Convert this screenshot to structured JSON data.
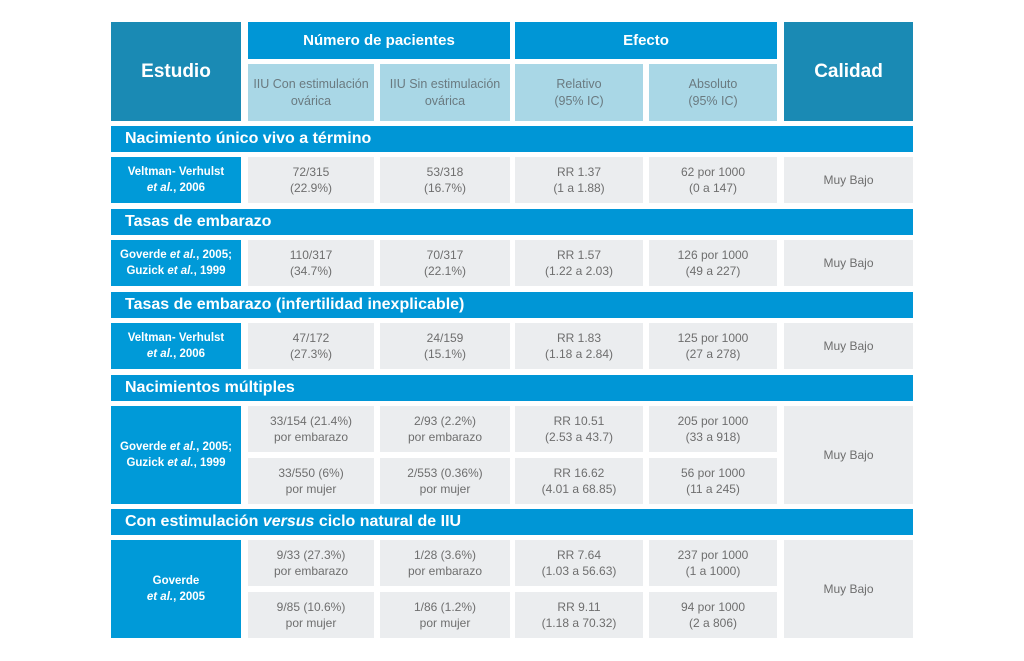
{
  "header": {
    "estudio": "Estudio",
    "numero_pacientes": "Número de pacientes",
    "efecto": "Efecto",
    "calidad": "Calidad",
    "sub": {
      "con_1": "IIU Con estimulación",
      "con_2": "ovárica",
      "sin_1": "IIU Sin estimulación",
      "sin_2": "ovárica",
      "rel_1": "Relativo",
      "rel_2": "(95% IC)",
      "abs_1": "Absoluto",
      "abs_2": "(95% IC)"
    }
  },
  "sections": {
    "s1": {
      "title": "Nacimiento único vivo a término",
      "study": {
        "a": "Veltman- Verhulst",
        "b": "et al.",
        "c": ", 2006"
      },
      "row": {
        "con_1": "72/315",
        "con_2": "(22.9%)",
        "sin_1": "53/318",
        "sin_2": "(16.7%)",
        "rel_1": "RR 1.37",
        "rel_2": "(1 a 1.88)",
        "abs_1": "62 por 1000",
        "abs_2": "(0 a 147)"
      },
      "calidad": "Muy Bajo"
    },
    "s2": {
      "title": "Tasas de embarazo",
      "study": {
        "a": "Goverde ",
        "b": "et al.",
        "c": ", 2005;",
        "d": "Guzick ",
        "e": "et al.",
        "f": ", 1999"
      },
      "row": {
        "con_1": "110/317",
        "con_2": "(34.7%)",
        "sin_1": "70/317",
        "sin_2": "(22.1%)",
        "rel_1": "RR 1.57",
        "rel_2": "(1.22 a 2.03)",
        "abs_1": "126 por 1000",
        "abs_2": "(49 a 227)"
      },
      "calidad": "Muy Bajo"
    },
    "s3": {
      "title": "Tasas de embarazo (infertilidad inexplicable)",
      "study": {
        "a": "Veltman- Verhulst",
        "b": "et al.",
        "c": ", 2006"
      },
      "row": {
        "con_1": "47/172",
        "con_2": "(27.3%)",
        "sin_1": "24/159",
        "sin_2": "(15.1%)",
        "rel_1": "RR 1.83",
        "rel_2": "(1.18 a 2.84)",
        "abs_1": "125 por 1000",
        "abs_2": "(27 a 278)"
      },
      "calidad": "Muy Bajo"
    },
    "s4": {
      "title": "Nacimientos múltiples",
      "study": {
        "a": "Goverde ",
        "b": "et al.",
        "c": ", 2005;",
        "d": "Guzick ",
        "e": "et al.",
        "f": ", 1999"
      },
      "row1": {
        "con_1": "33/154 (21.4%)",
        "con_2": "por embarazo",
        "sin_1": "2/93 (2.2%)",
        "sin_2": "por embarazo",
        "rel_1": "RR 10.51",
        "rel_2": "(2.53 a 43.7)",
        "abs_1": "205 por 1000",
        "abs_2": "(33 a 918)"
      },
      "row2": {
        "con_1": "33/550 (6%)",
        "con_2": "por mujer",
        "sin_1": "2/553 (0.36%)",
        "sin_2": "por mujer",
        "rel_1": "RR 16.62",
        "rel_2": "(4.01  a 68.85)",
        "abs_1": "56 por 1000",
        "abs_2": "(11 a 245)"
      },
      "calidad": "Muy Bajo"
    },
    "s5": {
      "title_a": "Con estimulación ",
      "title_b": "versus",
      "title_c": " ciclo natural de IIU",
      "study": {
        "a": "Goverde",
        "b": "et al.",
        "c": ", 2005"
      },
      "row1": {
        "con_1": "9/33 (27.3%)",
        "con_2": "por embarazo",
        "sin_1": "1/28 (3.6%)",
        "sin_2": "por embarazo",
        "rel_1": "RR 7.64",
        "rel_2": "(1.03 a 56.63)",
        "abs_1": "237 por 1000",
        "abs_2": "(1 a 1000)"
      },
      "row2": {
        "con_1": "9/85 (10.6%)",
        "con_2": "por mujer",
        "sin_1": "1/86 (1.2%)",
        "sin_2": "por mujer",
        "rel_1": "RR 9.11",
        "rel_2": "(1.18 a 70.32)",
        "abs_1": "94 por 1000",
        "abs_2": "(2 a 806)"
      },
      "calidad": "Muy Bajo"
    }
  },
  "colors": {
    "header_dark": "#1a8ab4",
    "header_blue": "#0096d6",
    "sub_header": "#a9d7e6",
    "cell": "#ebedef"
  }
}
